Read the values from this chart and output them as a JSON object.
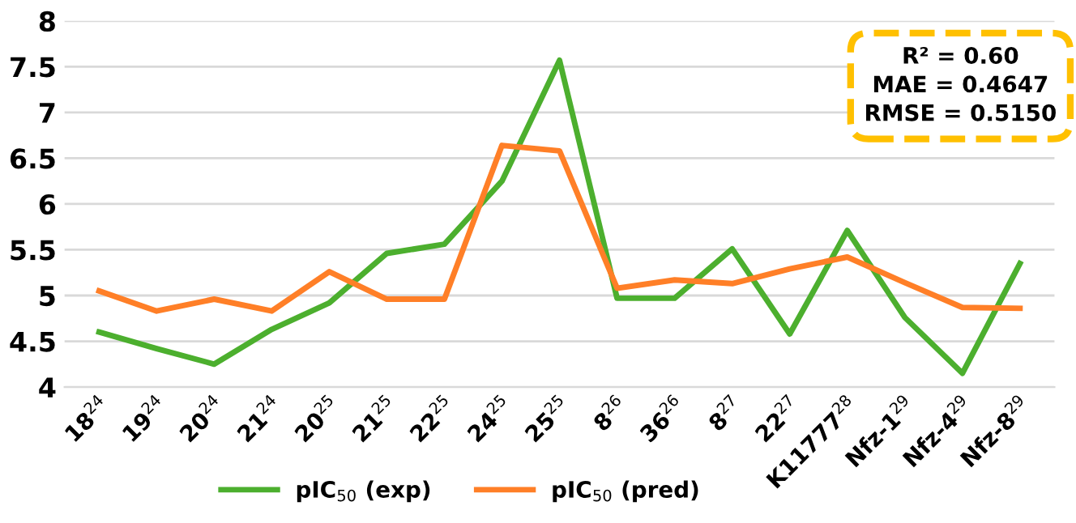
{
  "chart_data": {
    "type": "line",
    "categories": [
      "18$^{24}$",
      "19$^{24}$",
      "20$^{24}$",
      "21$^{24}$",
      "20$^{25}$",
      "21$^{25}$",
      "22$^{25}$",
      "24$^{25}$",
      "25$^{25}$",
      "8$^{26}$",
      "36$^{26}$",
      "8$^{27}$",
      "22$^{27}$",
      "K11777$^{28}$",
      "Nfz-1$^{29}$",
      "Nfz-4$^{29}$",
      "Nfz-8$^{29}$"
    ],
    "series": [
      {
        "name": "pIC$_{50}$ (exp)",
        "color": "#4caf2e",
        "values": [
          4.6,
          4.42,
          4.25,
          4.63,
          4.92,
          5.46,
          5.56,
          6.25,
          7.57,
          4.97,
          4.97,
          5.51,
          4.58,
          5.71,
          4.76,
          4.15,
          5.35
        ]
      },
      {
        "name": "pIC$_{50}$ (pred)",
        "color": "#ff7f27",
        "values": [
          5.05,
          4.83,
          4.96,
          4.83,
          5.26,
          4.96,
          4.96,
          6.64,
          6.58,
          5.08,
          5.17,
          5.13,
          5.29,
          5.42,
          5.14,
          4.87,
          4.86
        ]
      }
    ],
    "ylim": [
      4,
      8
    ],
    "yticks": [
      4,
      4.5,
      5,
      5.5,
      6,
      6.5,
      7,
      7.5,
      8
    ],
    "grid": "y",
    "legend": "bottom",
    "marker": "none",
    "line_style": "solid",
    "annotations": [
      "R² = 0.60\nMAE = 0.4647\nRMSE = 0.5150"
    ]
  }
}
